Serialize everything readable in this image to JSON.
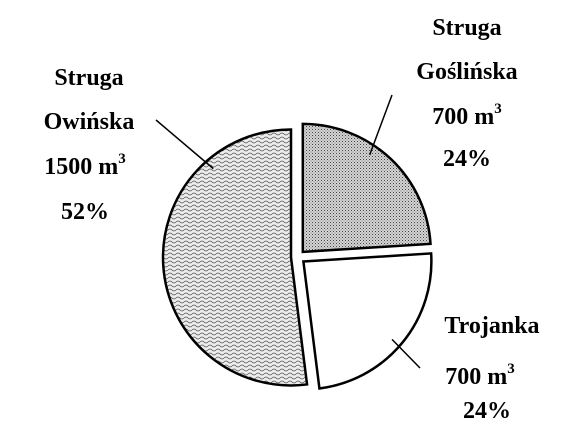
{
  "chart_data": {
    "type": "pie",
    "title": "",
    "slices": [
      {
        "label_lines": [
          "Struga",
          "Goślińska"
        ],
        "amount": "700",
        "unit": "m",
        "unit_sup": "3",
        "percent": "24%",
        "value": 24,
        "fill": "dots"
      },
      {
        "label_lines": [
          "Trojanka"
        ],
        "amount": "700",
        "unit": "m",
        "unit_sup": "3",
        "percent": "24%",
        "value": 24,
        "fill": "white"
      },
      {
        "label_lines": [
          "Struga",
          "Owińska"
        ],
        "amount": "1500",
        "unit": "m",
        "unit_sup": "3",
        "percent": "52%",
        "value": 52,
        "fill": "waves"
      }
    ],
    "colors": {
      "outline": "#000000",
      "background": "#ffffff"
    }
  }
}
